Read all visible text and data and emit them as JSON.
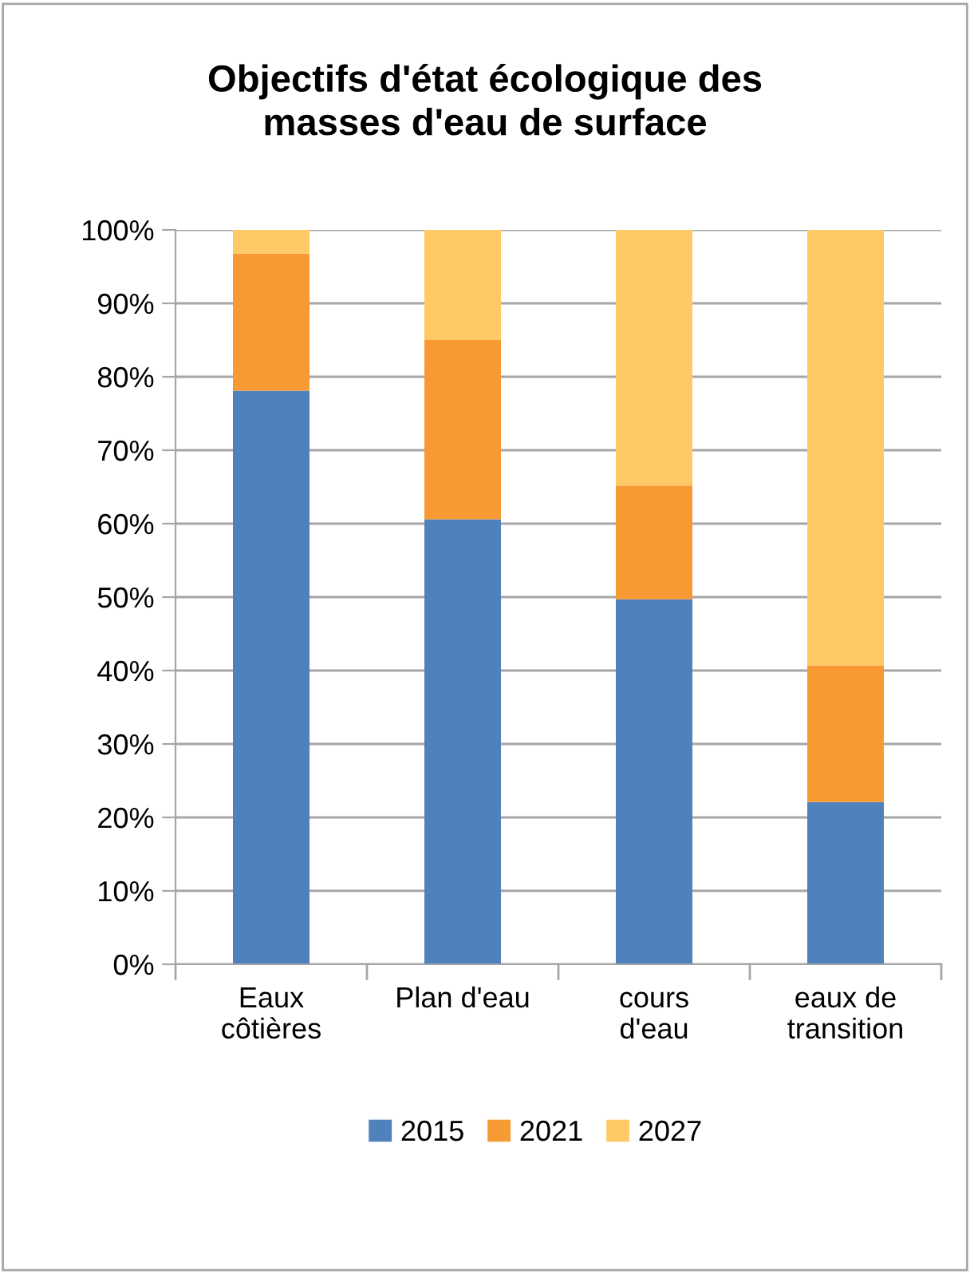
{
  "chart_data": {
    "type": "bar",
    "title": "Objectifs d'état écologique des\nmasses d'eau de surface",
    "categories": [
      "Eaux\ncôtières",
      "Plan d'eau",
      "cours\nd'eau",
      "eaux de\ntransition"
    ],
    "stacked": true,
    "series": [
      {
        "name": "2015",
        "color": "#4f81bd",
        "values": [
          78.1,
          60.6,
          49.7,
          22.1
        ]
      },
      {
        "name": "2021",
        "color": "#f79a33",
        "values": [
          18.7,
          24.4,
          15.5,
          18.6
        ]
      },
      {
        "name": "2027",
        "color": "#ffc966",
        "values": [
          3.2,
          15.0,
          34.8,
          59.3
        ]
      }
    ],
    "ylim": [
      0,
      100
    ],
    "yticks": [
      {
        "value": 0,
        "label": "0%"
      },
      {
        "value": 10,
        "label": "10%"
      },
      {
        "value": 20,
        "label": "20%"
      },
      {
        "value": 30,
        "label": "30%"
      },
      {
        "value": 40,
        "label": "40%"
      },
      {
        "value": 50,
        "label": "50%"
      },
      {
        "value": 60,
        "label": "60%"
      },
      {
        "value": 70,
        "label": "70%"
      },
      {
        "value": 80,
        "label": "80%"
      },
      {
        "value": 90,
        "label": "90%"
      },
      {
        "value": 100,
        "label": "100%"
      }
    ],
    "grid": "y",
    "legend": "bottom"
  }
}
